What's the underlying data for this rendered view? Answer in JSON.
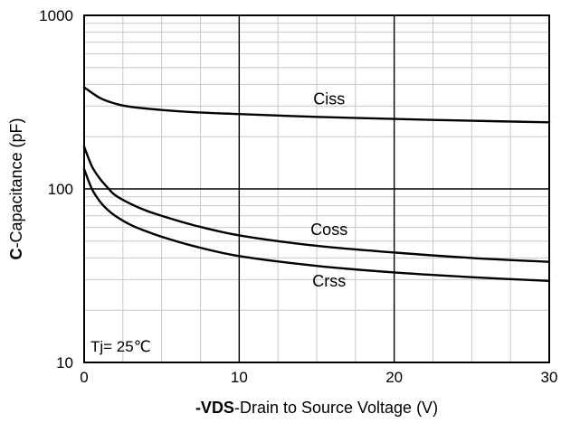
{
  "chart_data": {
    "type": "line",
    "x_scale": "linear",
    "y_scale": "log",
    "xlim": [
      0,
      30
    ],
    "ylim": [
      10,
      1000
    ],
    "x_ticks": [
      0,
      10,
      20,
      30
    ],
    "y_ticks": [
      10,
      100,
      1000
    ],
    "x_tick_labels": [
      "0",
      "10",
      "20",
      "30"
    ],
    "y_tick_labels": [
      "10",
      "100",
      "1000"
    ],
    "grid": true,
    "xlabel_bold": "-VDS",
    "xlabel_rest": "-Drain to Source Voltage (V)",
    "ylabel_bold": "C",
    "ylabel_rest": "-Capacitance (pF)",
    "annotation": "Tj= 25℃",
    "series": [
      {
        "name": "Ciss",
        "x": [
          0,
          1,
          2,
          3,
          5,
          7,
          10,
          15,
          20,
          25,
          30
        ],
        "y": [
          385,
          335,
          310,
          297,
          285,
          277,
          270,
          260,
          253,
          247,
          242
        ]
      },
      {
        "name": "Coss",
        "x": [
          0,
          0.5,
          1,
          1.5,
          2,
          3,
          4,
          5,
          7,
          10,
          15,
          20,
          25,
          30
        ],
        "y": [
          175,
          135,
          115,
          102,
          92,
          82,
          75,
          70,
          62,
          54,
          47,
          43,
          40,
          38
        ]
      },
      {
        "name": "Crss",
        "x": [
          0,
          0.5,
          1,
          1.5,
          2,
          3,
          4,
          5,
          7,
          10,
          15,
          20,
          25,
          30
        ],
        "y": [
          130,
          100,
          85,
          76,
          70,
          62,
          57,
          53,
          47,
          41,
          36,
          33,
          31,
          29.5
        ]
      }
    ],
    "colors": {
      "line": "#000000",
      "grid_minor": "#c8c8c8",
      "grid_major": "#000000",
      "background": "#ffffff"
    }
  }
}
